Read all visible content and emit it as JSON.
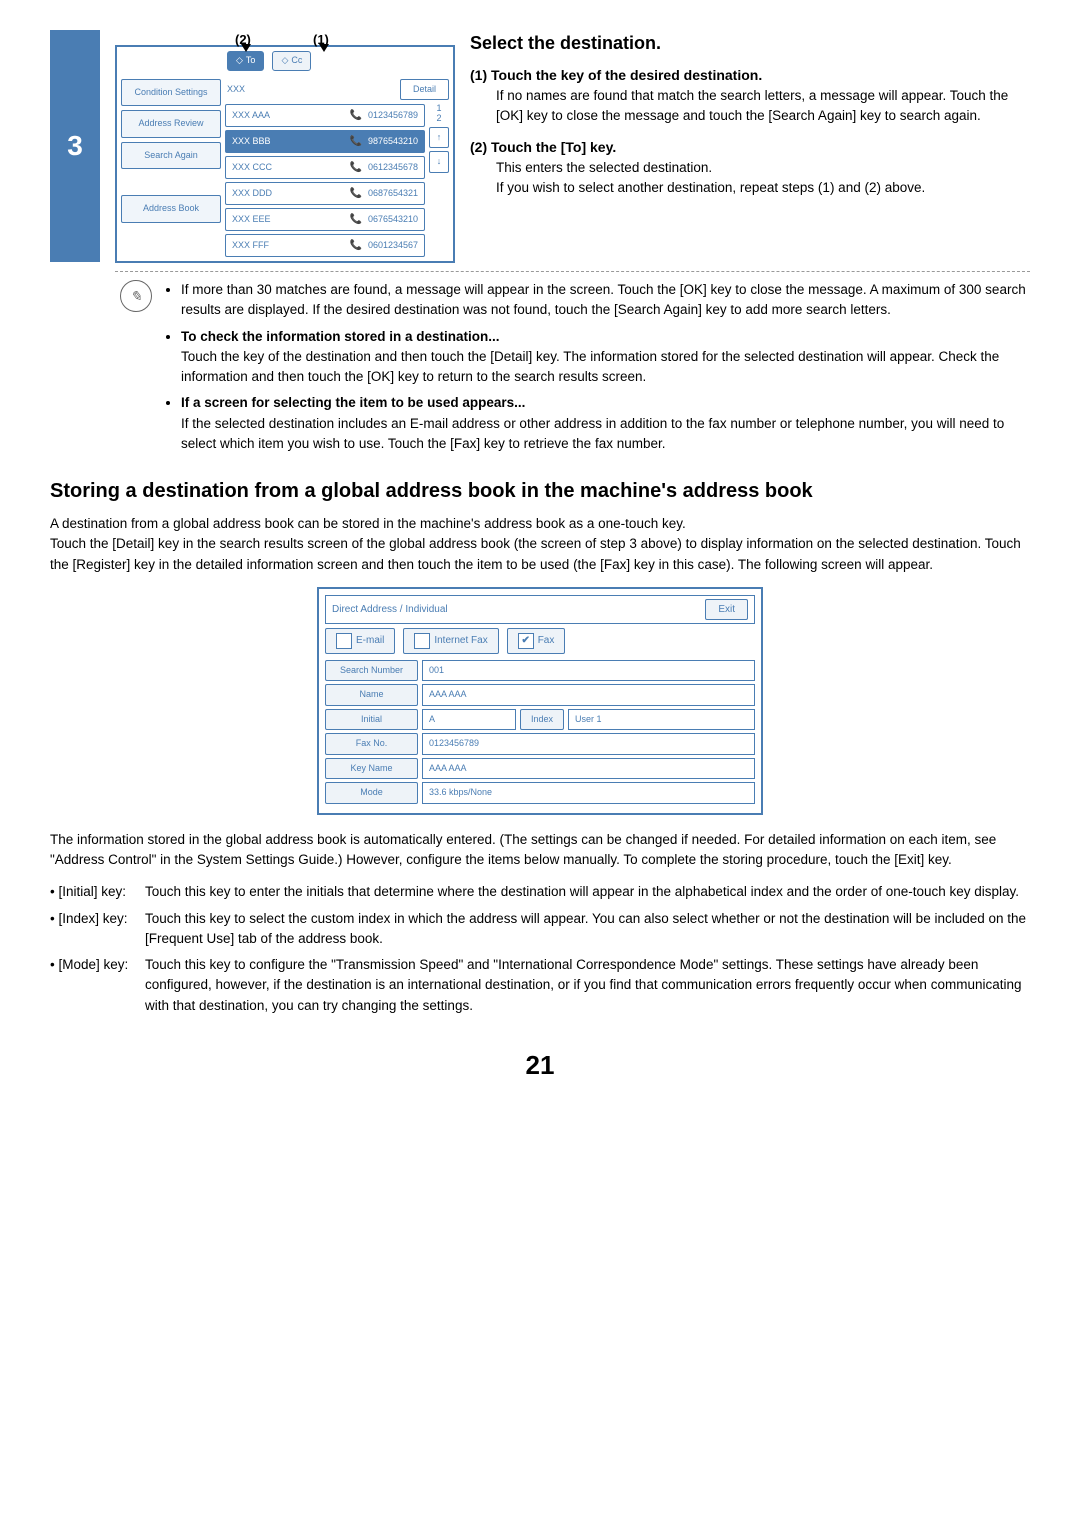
{
  "step": {
    "num": "3",
    "title": "Select the destination."
  },
  "markerLabels": {
    "m2": "(2)",
    "m1": "(1)"
  },
  "mock": {
    "toolbar": {
      "to": "To",
      "cc": "Cc"
    },
    "sidebar": [
      "Condition Settings",
      "Address Review",
      "Search Again",
      "Address Book"
    ],
    "search": {
      "label": "XXX",
      "detail": "Detail"
    },
    "rows": [
      {
        "n": "XXX AAA",
        "p": "0123456789",
        "hl": false
      },
      {
        "n": "XXX BBB",
        "p": "9876543210",
        "hl": true
      },
      {
        "n": "XXX CCC",
        "p": "0612345678",
        "hl": false
      },
      {
        "n": "XXX DDD",
        "p": "0687654321",
        "hl": false
      },
      {
        "n": "XXX EEE",
        "p": "0676543210",
        "hl": false
      },
      {
        "n": "XXX FFF",
        "p": "0601234567",
        "hl": false
      }
    ],
    "page": {
      "cur": "1",
      "tot": "2"
    },
    "scroll": {
      "up": "↑",
      "dn": "↓"
    }
  },
  "subs": [
    {
      "h": "(1) Touch the key of the desired destination.",
      "b": "If no names are found that match the search letters, a message will appear. Touch the [OK] key to close the message and touch the [Search Again] key to search again."
    },
    {
      "h": "(2) Touch the [To] key.",
      "b": "This enters the selected destination.\nIf you wish to select another destination, repeat steps (1) and (2) above."
    }
  ],
  "notes": [
    {
      "b": "If more than 30 matches are found, a message will appear in the screen. Touch the [OK] key to close the message. A maximum of 300 search results are displayed. If the desired destination was not found, touch the [Search Again] key to add more search letters."
    },
    {
      "h": "To check the information stored in a destination...",
      "b": "Touch the key of the destination and then touch the [Detail] key. The information stored for the selected destination will appear. Check the information and then touch the [OK] key to return to the search results screen."
    },
    {
      "h": "If a screen for selecting the item to be used appears...",
      "b": "If the selected destination includes an E-mail address or other address in addition to the fax number or telephone number, you will need to select which item you wish to use. Touch the [Fax] key to retrieve the fax number."
    }
  ],
  "h2": "Storing a destination from a global address book in the machine's address book",
  "p1": "A destination from a global address book can be stored in the machine's address book as a one-touch key.\nTouch the [Detail] key in the search results screen of the global address book (the screen of step 3 above) to display information on the selected destination. Touch the [Register] key in the detailed information screen and then touch the item to be used (the [Fax] key in this case). The following screen will appear.",
  "dlg": {
    "title": "Direct Address / Individual",
    "exit": "Exit",
    "tabs": [
      {
        "l": "E-mail",
        "c": false
      },
      {
        "l": "Internet Fax",
        "c": false
      },
      {
        "l": "Fax",
        "c": true
      }
    ],
    "rows": [
      {
        "l": "Search Number",
        "v": "001"
      },
      {
        "l": "Name",
        "v": "AAA AAA"
      },
      {
        "l": "Initial",
        "v": "A",
        "idx": "Index",
        "idxv": "User 1"
      },
      {
        "l": "Fax No.",
        "v": "0123456789"
      },
      {
        "l": "Key Name",
        "v": "AAA AAA"
      },
      {
        "l": "Mode",
        "v": "33.6 kbps/None"
      }
    ]
  },
  "p2": "The information stored in the global address book is automatically entered. (The settings can be changed if needed. For detailed information on each item, see \"Address Control\" in the System Settings Guide.) However, configure the items below manually. To complete the storing procedure, touch the [Exit] key.",
  "keys": [
    {
      "k": "• [Initial] key:",
      "d": "Touch this key to enter the initials that determine where the destination will appear in the alphabetical index and the order of one-touch key display."
    },
    {
      "k": "• [Index] key:",
      "d": "Touch this key to select the custom index in which the address will appear. You can also select whether or not the destination will be included on the [Frequent Use] tab of the address book."
    },
    {
      "k": "• [Mode] key:",
      "d": "Touch this key to configure the \"Transmission Speed\" and \"International Correspondence Mode\" settings. These settings have already been configured, however, if the destination is an international destination, or if you find that communication errors frequently occur when communicating with that destination, you can try changing the settings."
    }
  ],
  "pagenum": "21"
}
